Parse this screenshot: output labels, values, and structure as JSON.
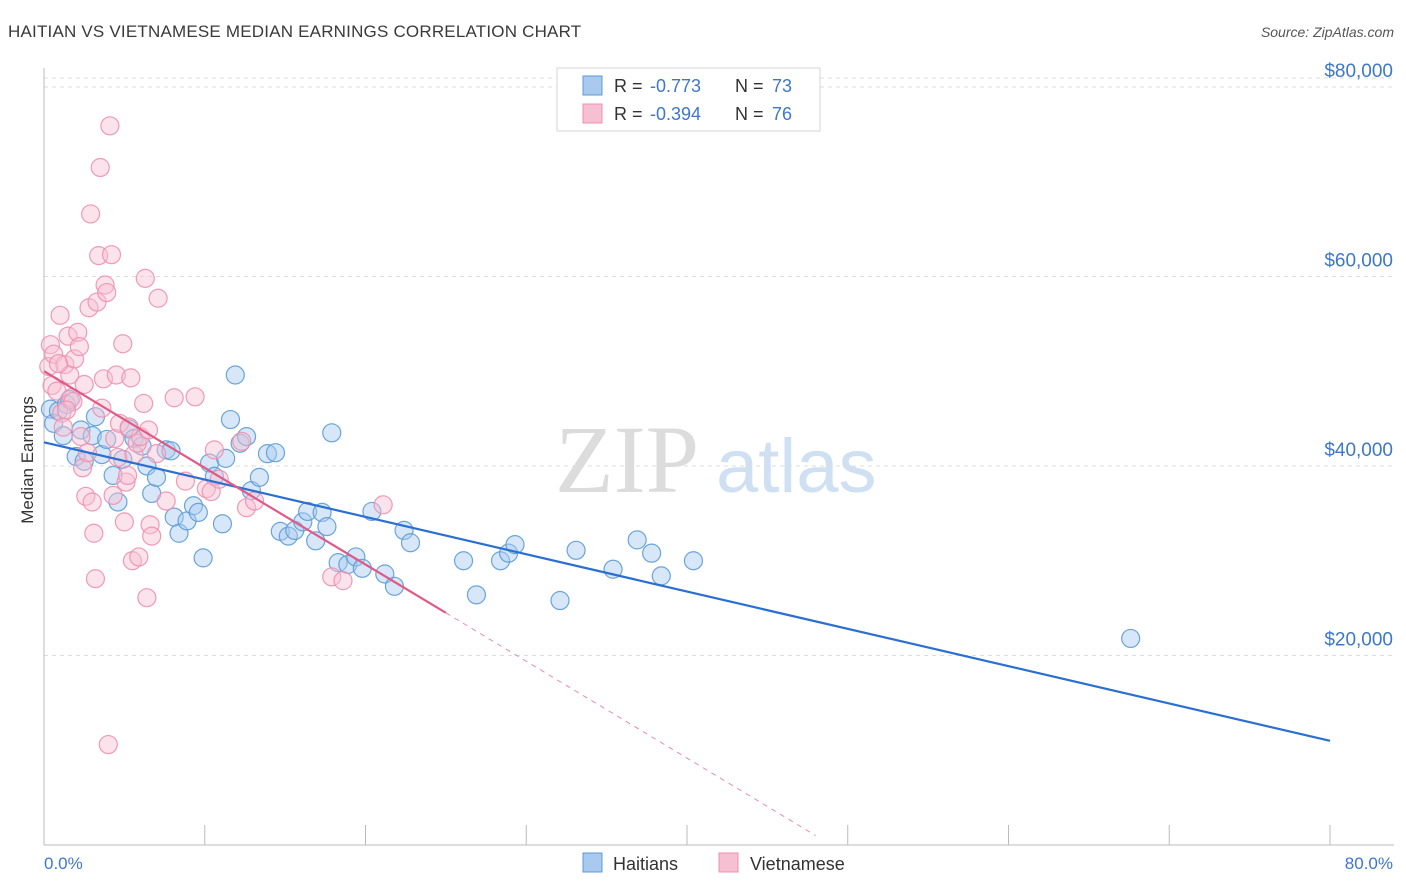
{
  "title": "HAITIAN VS VIETNAMESE MEDIAN EARNINGS CORRELATION CHART",
  "source": "Source: ZipAtlas.com",
  "watermark": {
    "zip": "ZIP",
    "atlas": "atlas"
  },
  "colors": {
    "blue": "#5b9bd5",
    "blue_line": "#2a6fd1",
    "blue_fill": "#a9c9ef",
    "pink": "#ef8fae",
    "pink_line": "#e05a88",
    "pink_fill": "#f7c0d2",
    "tick_label": "#3d78c8",
    "grid": "#dddddd"
  },
  "legend": [
    {
      "r_label": "R =",
      "r_value": "-0.773",
      "n_label": "N =",
      "n_value": "73"
    },
    {
      "r_label": "R =",
      "r_value": "-0.394",
      "n_label": "N =",
      "n_value": "76"
    }
  ],
  "bottom_legend": [
    "Haitians",
    "Vietnamese"
  ],
  "chart_data": {
    "type": "scatter",
    "title": "HAITIAN VS VIETNAMESE MEDIAN EARNINGS CORRELATION CHART",
    "xlabel": "",
    "ylabel": "Median Earnings",
    "xlim": [
      0,
      80
    ],
    "ylim": [
      0,
      82000
    ],
    "x_tick_labels": [
      "0.0%",
      "80.0%"
    ],
    "y_ticks": [
      20000,
      40000,
      60000,
      80000
    ],
    "y_tick_labels": [
      "$20,000",
      "$40,000",
      "$60,000",
      "$80,000"
    ],
    "grid": true,
    "series": [
      {
        "name": "Haitians",
        "r": -0.773,
        "n": 73,
        "trend": {
          "x0": 0,
          "y0": 42500,
          "x1": 80,
          "y1": 11000
        },
        "points": [
          [
            0.4,
            46000
          ],
          [
            0.6,
            44500
          ],
          [
            0.9,
            45800
          ],
          [
            1.2,
            43200
          ],
          [
            1.4,
            46500
          ],
          [
            1.6,
            47000
          ],
          [
            2.0,
            41000
          ],
          [
            2.3,
            43800
          ],
          [
            2.5,
            40500
          ],
          [
            3.0,
            43200
          ],
          [
            3.2,
            45200
          ],
          [
            3.6,
            41200
          ],
          [
            3.9,
            42800
          ],
          [
            4.3,
            39000
          ],
          [
            4.6,
            36200
          ],
          [
            4.9,
            40700
          ],
          [
            5.3,
            43900
          ],
          [
            5.6,
            42900
          ],
          [
            6.1,
            42100
          ],
          [
            6.4,
            40000
          ],
          [
            6.7,
            37100
          ],
          [
            7.0,
            38800
          ],
          [
            7.6,
            41700
          ],
          [
            7.9,
            41600
          ],
          [
            8.1,
            34600
          ],
          [
            8.4,
            32900
          ],
          [
            8.9,
            34200
          ],
          [
            9.3,
            35800
          ],
          [
            9.6,
            35100
          ],
          [
            9.9,
            30300
          ],
          [
            10.3,
            40300
          ],
          [
            10.6,
            38900
          ],
          [
            11.1,
            33900
          ],
          [
            11.3,
            40800
          ],
          [
            11.6,
            44900
          ],
          [
            11.9,
            49600
          ],
          [
            12.2,
            42400
          ],
          [
            12.6,
            43100
          ],
          [
            12.9,
            37400
          ],
          [
            13.4,
            38800
          ],
          [
            13.9,
            41300
          ],
          [
            14.4,
            41400
          ],
          [
            14.7,
            33100
          ],
          [
            15.2,
            32600
          ],
          [
            15.6,
            33200
          ],
          [
            16.1,
            34100
          ],
          [
            16.4,
            35200
          ],
          [
            16.9,
            32100
          ],
          [
            17.3,
            35100
          ],
          [
            17.6,
            33600
          ],
          [
            17.9,
            43500
          ],
          [
            18.3,
            29800
          ],
          [
            18.9,
            29600
          ],
          [
            19.4,
            30400
          ],
          [
            19.8,
            29200
          ],
          [
            20.4,
            35200
          ],
          [
            21.2,
            28600
          ],
          [
            21.8,
            27300
          ],
          [
            22.4,
            33200
          ],
          [
            22.8,
            31900
          ],
          [
            26.1,
            30000
          ],
          [
            26.9,
            26400
          ],
          [
            28.4,
            30000
          ],
          [
            28.9,
            30800
          ],
          [
            29.3,
            31700
          ],
          [
            32.1,
            25800
          ],
          [
            33.1,
            31100
          ],
          [
            35.4,
            29100
          ],
          [
            36.9,
            32200
          ],
          [
            37.8,
            30800
          ],
          [
            38.4,
            28400
          ],
          [
            40.4,
            30000
          ],
          [
            67.6,
            21800
          ]
        ]
      },
      {
        "name": "Vietnamese",
        "r": -0.394,
        "n": 76,
        "trend": {
          "x0": 0,
          "y0": 50000,
          "x1": 25,
          "y1": 24500,
          "dash_x1": 48,
          "dash_y1": 1000
        },
        "points": [
          [
            0.3,
            50500
          ],
          [
            0.4,
            52800
          ],
          [
            0.5,
            48500
          ],
          [
            0.6,
            51800
          ],
          [
            0.8,
            47900
          ],
          [
            1.0,
            55900
          ],
          [
            1.1,
            45600
          ],
          [
            1.3,
            50700
          ],
          [
            1.5,
            53700
          ],
          [
            1.6,
            49600
          ],
          [
            1.7,
            47200
          ],
          [
            1.8,
            46800
          ],
          [
            1.9,
            51300
          ],
          [
            2.1,
            54100
          ],
          [
            2.2,
            52600
          ],
          [
            2.3,
            43100
          ],
          [
            2.4,
            39800
          ],
          [
            2.5,
            48600
          ],
          [
            2.6,
            36800
          ],
          [
            2.8,
            56700
          ],
          [
            2.9,
            66600
          ],
          [
            3.0,
            36200
          ],
          [
            3.1,
            32900
          ],
          [
            3.2,
            28100
          ],
          [
            3.3,
            57300
          ],
          [
            3.4,
            62200
          ],
          [
            3.5,
            71500
          ],
          [
            3.6,
            46100
          ],
          [
            3.7,
            49200
          ],
          [
            3.8,
            59100
          ],
          [
            3.9,
            58300
          ],
          [
            4.0,
            10600
          ],
          [
            4.1,
            75900
          ],
          [
            4.2,
            62300
          ],
          [
            4.4,
            42900
          ],
          [
            4.5,
            49600
          ],
          [
            4.6,
            40900
          ],
          [
            4.7,
            44500
          ],
          [
            4.9,
            52900
          ],
          [
            5.0,
            34100
          ],
          [
            5.1,
            38300
          ],
          [
            5.2,
            39000
          ],
          [
            5.4,
            49300
          ],
          [
            5.5,
            30000
          ],
          [
            5.6,
            41200
          ],
          [
            5.8,
            42400
          ],
          [
            5.9,
            30400
          ],
          [
            6.0,
            43100
          ],
          [
            6.2,
            46600
          ],
          [
            6.3,
            59800
          ],
          [
            6.4,
            26100
          ],
          [
            6.5,
            43800
          ],
          [
            6.6,
            33800
          ],
          [
            6.7,
            32600
          ],
          [
            7.0,
            41300
          ],
          [
            7.1,
            57700
          ],
          [
            7.6,
            36300
          ],
          [
            8.1,
            47200
          ],
          [
            8.8,
            38400
          ],
          [
            9.4,
            47300
          ],
          [
            10.1,
            37600
          ],
          [
            10.4,
            37300
          ],
          [
            10.6,
            41700
          ],
          [
            10.9,
            38600
          ],
          [
            12.3,
            42600
          ],
          [
            12.6,
            35600
          ],
          [
            13.1,
            36300
          ],
          [
            17.9,
            28300
          ],
          [
            18.6,
            27900
          ],
          [
            21.1,
            35900
          ],
          [
            1.4,
            45900
          ],
          [
            2.7,
            41400
          ],
          [
            0.9,
            50800
          ],
          [
            1.2,
            44100
          ],
          [
            4.3,
            36900
          ],
          [
            5.3,
            44100
          ]
        ]
      }
    ]
  }
}
